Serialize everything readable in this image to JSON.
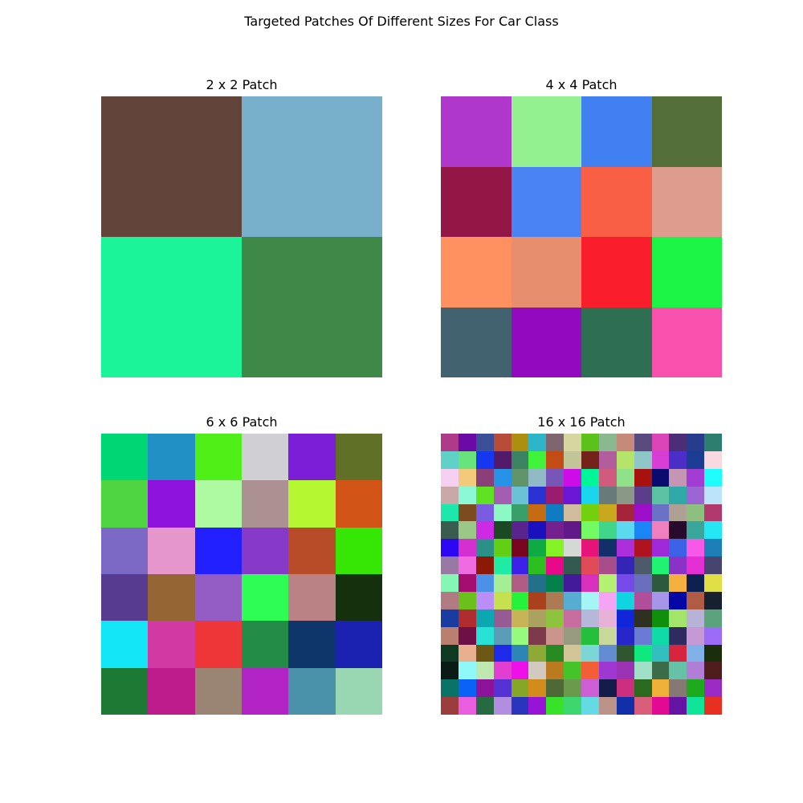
{
  "figure": {
    "title": "Targeted Patches Of Different Sizes For Car Class"
  },
  "chart_data": [
    {
      "type": "heatmap",
      "title": "2 x 2 Patch",
      "rows": 2,
      "cols": 2,
      "colors": [
        [
          "#62443a",
          "#78b0cb"
        ],
        [
          "#1cf49a",
          "#3e8948"
        ]
      ]
    },
    {
      "type": "heatmap",
      "title": "4 x 4 Patch",
      "rows": 4,
      "cols": 4,
      "colors": [
        [
          "#b037cc",
          "#93f18f",
          "#4180f1",
          "#536f37"
        ],
        [
          "#931647",
          "#4a83f4",
          "#f85f45",
          "#de9c8f"
        ],
        [
          "#fe915f",
          "#e78e6f",
          "#fa1e2d",
          "#1bf444"
        ],
        [
          "#41626e",
          "#9309c0",
          "#2e6f53",
          "#f751ad"
        ]
      ]
    },
    {
      "type": "heatmap",
      "title": "6 x 6 Patch",
      "rows": 6,
      "cols": 6,
      "colors": [
        [
          "#00d674",
          "#2190c5",
          "#50ef17",
          "#d0cfd4",
          "#7c1ed8",
          "#617027"
        ],
        [
          "#4fd541",
          "#8d12dc",
          "#aefaa0",
          "#ac9192",
          "#b4f731",
          "#d15315"
        ],
        [
          "#7c69c5",
          "#e596ca",
          "#2220fe",
          "#8739c8",
          "#b94c28",
          "#36e604"
        ],
        [
          "#563b91",
          "#956633",
          "#945dc6",
          "#2efe53",
          "#ba8284",
          "#14300c"
        ],
        [
          "#12e6f6",
          "#d23aa3",
          "#ee3538",
          "#238d48",
          "#0e366a",
          "#1b21b1"
        ],
        [
          "#1d7a34",
          "#be1c8d",
          "#9a8474",
          "#b324c7",
          "#4a92a9",
          "#98d7b1"
        ]
      ]
    },
    {
      "type": "heatmap",
      "title": "16 x 16 Patch",
      "rows": 16,
      "cols": 16,
      "colors": [
        [
          "#b03a8a",
          "#6c0aa8",
          "#3c4f99",
          "#b84c38",
          "#ad8f10",
          "#2eb5c8",
          "#7f6570",
          "#d6d7a0",
          "#5ac218",
          "#8ab98f",
          "#c58a7a",
          "#5a4a7d",
          "#db45b8",
          "#4b2d78",
          "#263d8e",
          "#2c7f6e"
        ],
        [
          "#5fd1c6",
          "#69e47a",
          "#1637f0",
          "#541a6a",
          "#3a8261",
          "#3ef33a",
          "#c24c13",
          "#c2c598",
          "#74231a",
          "#b25e9c",
          "#b4e56a",
          "#8fc6c8",
          "#d83ed4",
          "#4a2ec7",
          "#1c3c93",
          "#f8d9e0"
        ],
        [
          "#f6d0f2",
          "#f1ca7c",
          "#8a3f79",
          "#2592e6",
          "#62946a",
          "#8fbac6",
          "#7856b8",
          "#cd0ce7",
          "#00f598",
          "#d05b7d",
          "#8fe28a",
          "#a8120e",
          "#0b0a6e",
          "#c596b4",
          "#a33cd2",
          "#1efcfd"
        ],
        [
          "#c9a9a8",
          "#8cf8d5",
          "#5ee221",
          "#a55db2",
          "#6ac2d6",
          "#2b32d4",
          "#9a1c6e",
          "#6b16d5",
          "#19d6ed",
          "#687a7c",
          "#8b9787",
          "#5b3d8a",
          "#5dc1a3",
          "#2ea9a8",
          "#9d65d4",
          "#bbe4fb"
        ],
        [
          "#1de7ab",
          "#7d4c1e",
          "#795ce2",
          "#8cf8c4",
          "#389e6a",
          "#c56b12",
          "#0f7bc3",
          "#d2bc9e",
          "#72d00f",
          "#caa81e",
          "#a4243a",
          "#9d0ec9",
          "#6a72c6",
          "#aea194",
          "#8cbf80",
          "#b1396c"
        ],
        [
          "#3a5c4e",
          "#9bc788",
          "#ce29e5",
          "#1a4924",
          "#5b248c",
          "#1a10bd",
          "#74218f",
          "#611889",
          "#74fb63",
          "#41d58a",
          "#5cd9ee",
          "#1a86f6",
          "#f07fc0",
          "#280a2d",
          "#3aa69b",
          "#25e6f5"
        ],
        [
          "#2d06f4",
          "#d52ed1",
          "#2b9086",
          "#61cf13",
          "#7a0320",
          "#0eaa43",
          "#84f325",
          "#d5d9d5",
          "#e61378",
          "#132f6a",
          "#ad2fdb",
          "#b01320",
          "#9f28d8",
          "#3c62e6",
          "#f858e8",
          "#1d7fb7"
        ],
        [
          "#9879a4",
          "#f06ae2",
          "#8c1806",
          "#1eeca5",
          "#3e21e8",
          "#2bbf1f",
          "#e8098b",
          "#325a4e",
          "#e14b58",
          "#a94d8a",
          "#3524b8",
          "#4d5a6a",
          "#1ff471",
          "#8a31c6",
          "#e32fd3",
          "#454570"
        ],
        [
          "#85f6b4",
          "#a50c70",
          "#4b91e8",
          "#a4ee95",
          "#b15b85",
          "#23708c",
          "#04814b",
          "#431b9a",
          "#d730bc",
          "#b4f171",
          "#7649e9",
          "#6a6fbd",
          "#2c5a3e",
          "#f5b13f",
          "#0d2150",
          "#e0e046"
        ],
        [
          "#b07b83",
          "#6bc11c",
          "#bc8ef8",
          "#c6e050",
          "#25f339",
          "#a8411c",
          "#ad7b53",
          "#55aed2",
          "#a5f4f6",
          "#f5a3f3",
          "#11d4e1",
          "#b14e9a",
          "#a795ea",
          "#0407a3",
          "#b05c44",
          "#16202e"
        ],
        [
          "#1a3ca0",
          "#b02d2f",
          "#0ca8b1",
          "#965b92",
          "#c6b457",
          "#a9a35f",
          "#8ec43d",
          "#c86b9f",
          "#b6b8d9",
          "#e6b2d5",
          "#1026d8",
          "#2e3021",
          "#108f0d",
          "#a3e46a",
          "#b6b3d6",
          "#5aa37c"
        ],
        [
          "#b97f6f",
          "#6e0f48",
          "#28e2d5",
          "#5a9db4",
          "#95fb7e",
          "#7c3a4a",
          "#cb958e",
          "#979a7c",
          "#25c039",
          "#c9d99b",
          "#2726c8",
          "#6b7ad4",
          "#10dba8",
          "#2e2b61",
          "#c598d6",
          "#9c6bf7"
        ],
        [
          "#0e3a22",
          "#e9af8f",
          "#6c5814",
          "#1d2be8",
          "#2d85b5",
          "#8ea935",
          "#268a20",
          "#d1c496",
          "#7ad7d6",
          "#638dd3",
          "#30552e",
          "#0ee87c",
          "#33bebf",
          "#d8253f",
          "#80b0e8",
          "#1a2e0b"
        ],
        [
          "#0a1a14",
          "#8ff8f8",
          "#bde8b0",
          "#e23fd2",
          "#ef0fe8",
          "#d2cac1",
          "#ba7a20",
          "#45c42a",
          "#f25e35",
          "#9f37d3",
          "#9b31b3",
          "#a1e0c8",
          "#3b6c48",
          "#65c2a7",
          "#b07ed6",
          "#4e1d1c"
        ],
        [
          "#087366",
          "#0b62f7",
          "#8d149a",
          "#5432d4",
          "#86a627",
          "#d28c1a",
          "#4e6838",
          "#6c9a4d",
          "#cd5ed4",
          "#141c4c",
          "#cc2f7e",
          "#2a6a1e",
          "#efb13a",
          "#847a73",
          "#1daa1d",
          "#9c2ac4"
        ],
        [
          "#9b3d3c",
          "#ea5de0",
          "#256a40",
          "#b28ee1",
          "#2a35bd",
          "#9714d6",
          "#38e228",
          "#3cd86f",
          "#63dae4",
          "#bc9388",
          "#0f2ea8",
          "#da5e7a",
          "#e20a92",
          "#6513a2",
          "#0fe499",
          "#e83020"
        ]
      ]
    }
  ]
}
